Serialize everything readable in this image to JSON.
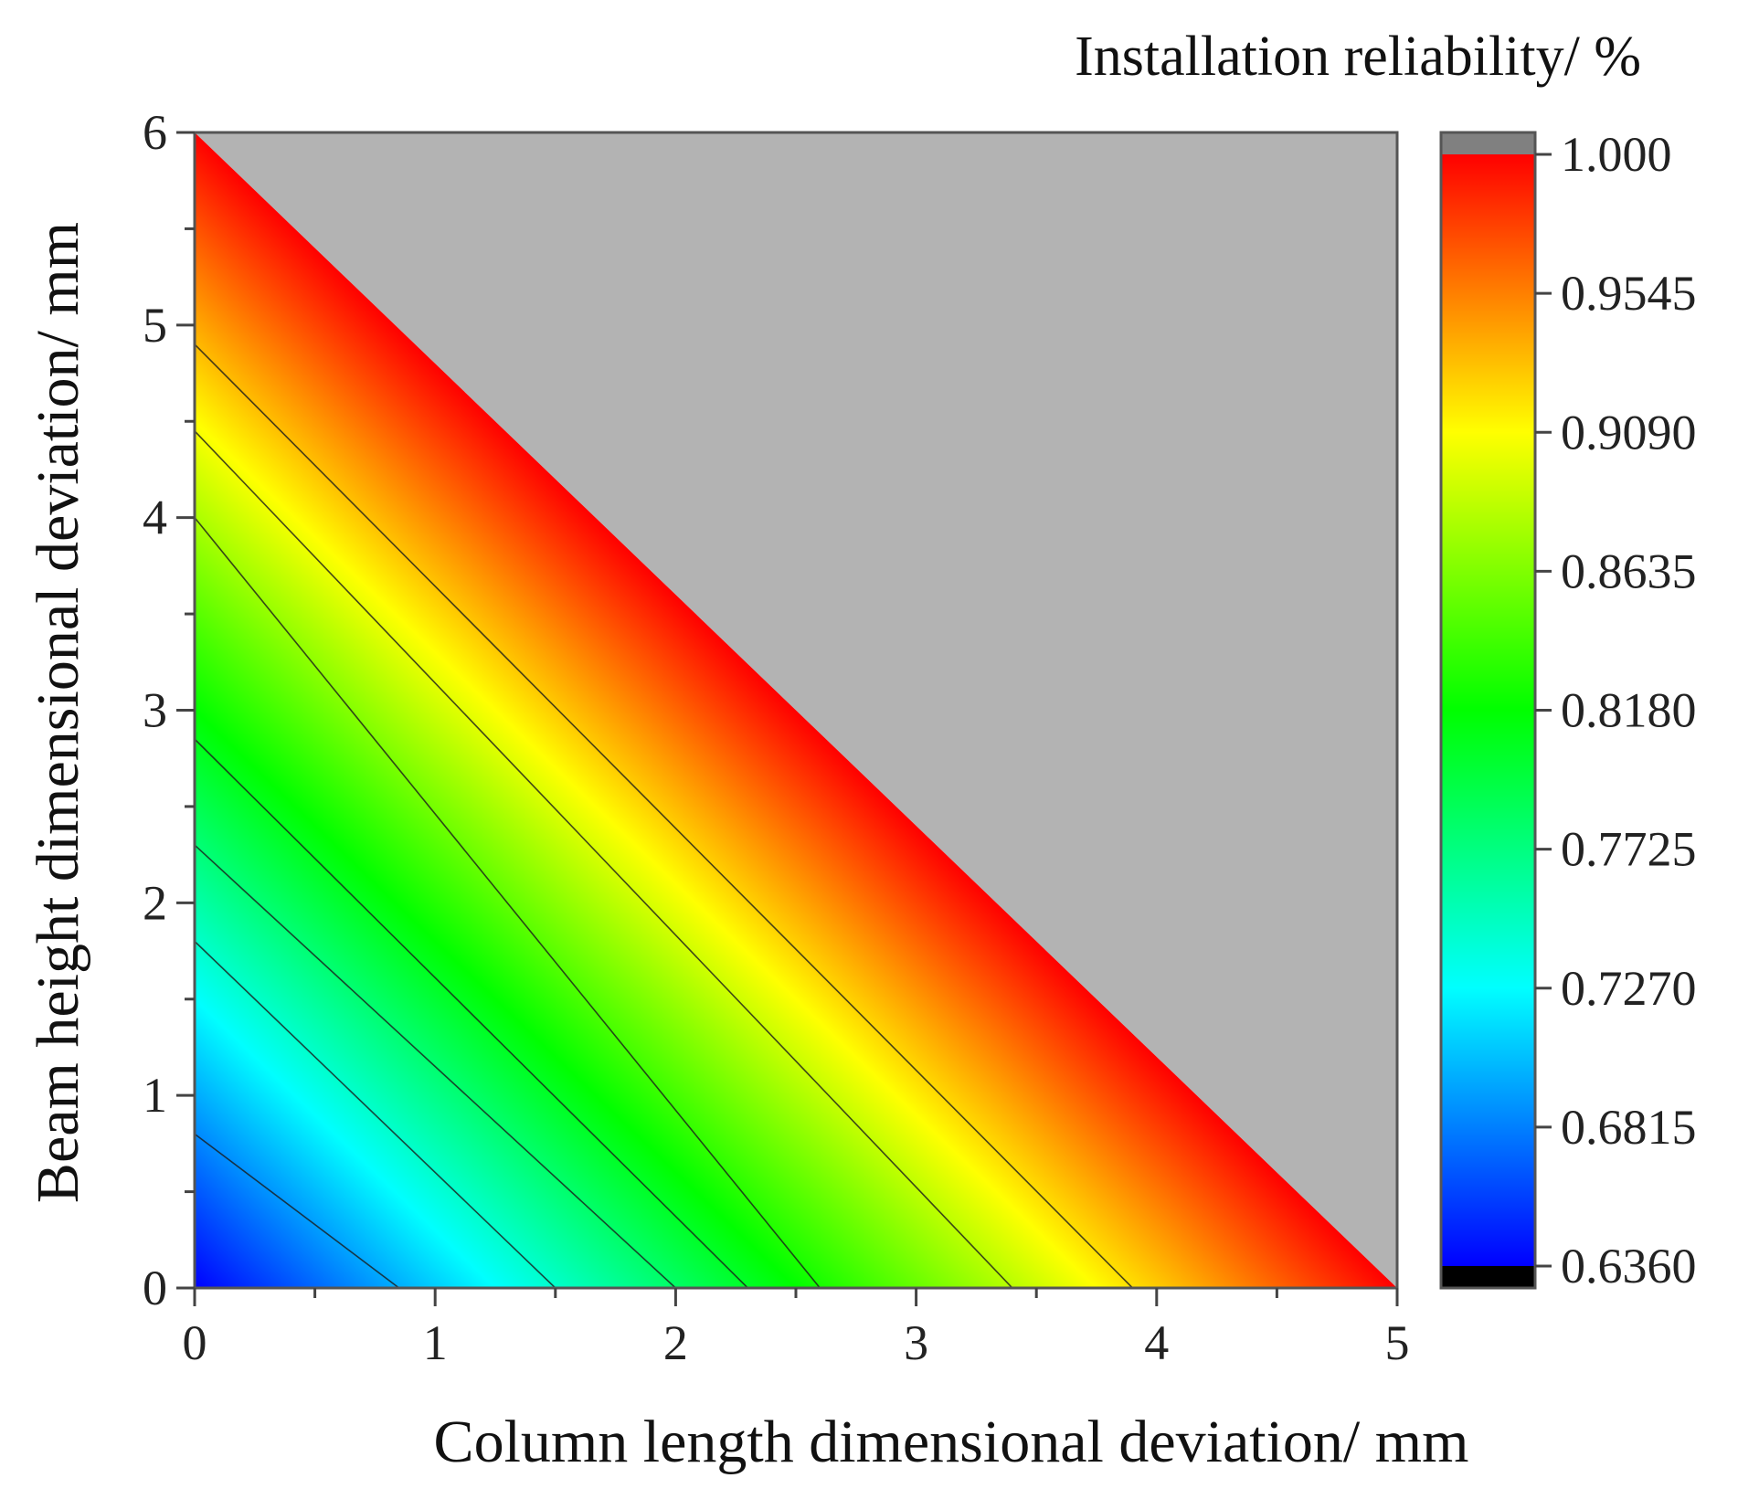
{
  "chart_data": {
    "type": "heatmap",
    "subtype": "filled-contour",
    "title": "Installation reliability/ %",
    "xlabel": "Column length dimensional deviation/ mm",
    "ylabel": "Beam height dimensional deviation/ mm",
    "xlim": [
      0,
      5
    ],
    "ylim": [
      0,
      6
    ],
    "x_ticks": [
      "0",
      "1",
      "2",
      "3",
      "4",
      "5"
    ],
    "y_ticks": [
      "0",
      "1",
      "2",
      "3",
      "4",
      "5",
      "6"
    ],
    "colorbar": {
      "min": 0.636,
      "max": 1.0,
      "tick_labels": [
        "0.6360",
        "0.6815",
        "0.7270",
        "0.7725",
        "0.8180",
        "0.8635",
        "0.9090",
        "0.9545",
        "1.000"
      ],
      "overflow_color": "#808080",
      "underflow_color": "#000000",
      "colors": [
        "#0000ff",
        "#00ffff",
        "#00ff00",
        "#ffff00",
        "#ff0000"
      ]
    },
    "region_above_boundary": {
      "color": "#b3b3b3",
      "boundary": [
        [
          0,
          6
        ],
        [
          5,
          0
        ]
      ]
    },
    "contour_lines_intercepts": [
      {
        "x": 0.85,
        "y": 0.8
      },
      {
        "x": 1.5,
        "y": 1.8
      },
      {
        "x": 2.0,
        "y": 2.3
      },
      {
        "x": 2.3,
        "y": 2.85
      },
      {
        "x": 2.6,
        "y": 4.0
      },
      {
        "x": 3.4,
        "y": 4.45
      },
      {
        "x": 3.9,
        "y": 4.9
      }
    ],
    "grid": false
  }
}
